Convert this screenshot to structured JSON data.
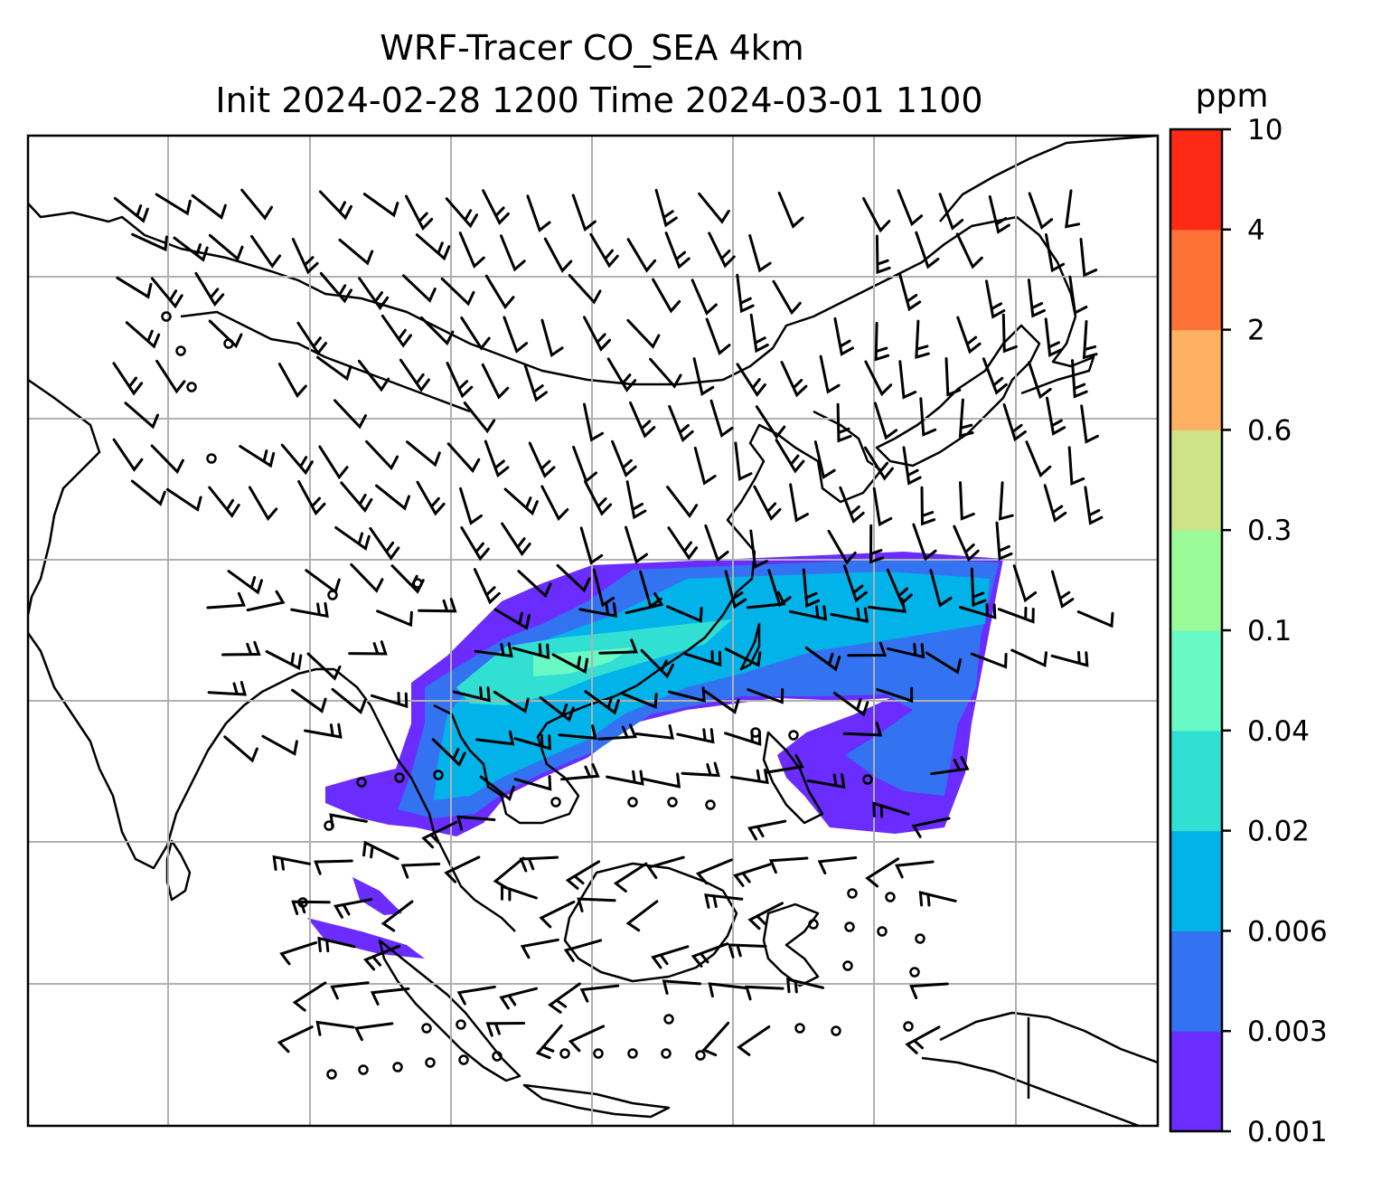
{
  "title": {
    "line1": "WRF-Tracer CO_SEA 4km",
    "line2": "Init 2024-02-28 1200 Time 2024-03-01 1100"
  },
  "colorbar": {
    "unit": "ppm",
    "ticks": [
      "0.001",
      "0.003",
      "0.006",
      "0.02",
      "0.04",
      "0.1",
      "0.3",
      "0.6",
      "2",
      "4",
      "10"
    ],
    "colors": [
      "#6a2cff",
      "#3373f2",
      "#02b3ea",
      "#31e0d3",
      "#69f9c5",
      "#9afb98",
      "#cde385",
      "#feb063",
      "#fe7137",
      "#ff2a16"
    ]
  },
  "chart_data": {
    "type": "map",
    "variable": "CO tracer",
    "unit": "ppm",
    "levels": [
      0.001,
      0.003,
      0.006,
      0.02,
      0.04,
      0.1,
      0.3,
      0.6,
      2,
      4,
      10
    ],
    "overlays": [
      "coastlines",
      "gridlines",
      "wind-barbs"
    ]
  }
}
